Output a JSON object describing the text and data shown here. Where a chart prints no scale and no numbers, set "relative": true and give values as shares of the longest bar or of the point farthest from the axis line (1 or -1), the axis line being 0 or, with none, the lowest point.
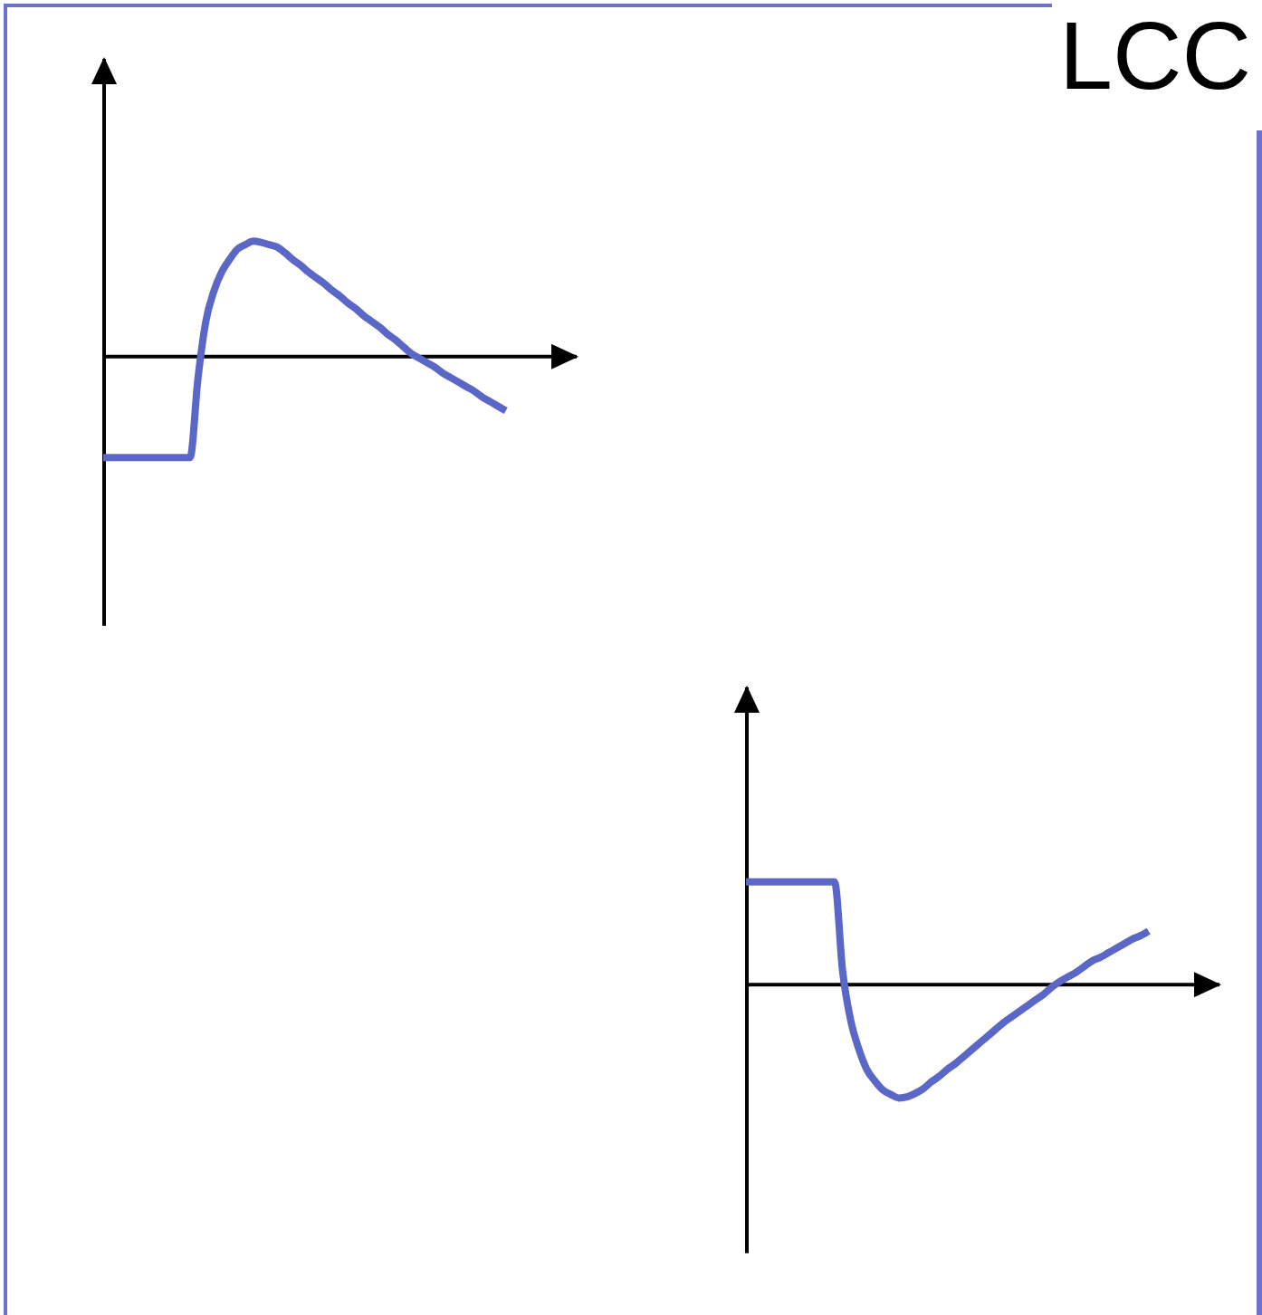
{
  "chart_data": [
    {
      "type": "line",
      "relative": true,
      "categories": [
        null,
        null,
        null,
        null,
        null,
        null,
        null,
        null,
        null,
        null,
        null,
        null,
        null,
        null,
        null,
        null,
        null,
        null,
        null,
        null,
        null,
        null,
        null,
        null,
        null,
        null,
        null,
        null,
        null,
        null,
        null,
        null,
        null,
        null,
        null,
        null,
        null,
        null,
        null,
        null,
        null,
        null,
        null,
        null,
        null,
        null,
        null,
        null,
        null,
        null,
        null,
        null
      ],
      "series": [
        {
          "color": "#5b67c6",
          "values": [
            -0.89,
            -0.89,
            -0.89,
            -0.89,
            -0.89,
            -0.89,
            -0.89,
            -0.89,
            -0.89,
            -0.89,
            -0.89,
            -0.89,
            -0.2,
            0.3,
            0.56,
            0.73,
            0.84,
            0.93,
            0.97,
            1,
            0.99,
            0.97,
            0.95,
            0.9,
            0.84,
            0.79,
            0.73,
            0.68,
            0.63,
            0.57,
            0.52,
            0.46,
            0.41,
            0.35,
            0.3,
            0.25,
            0.19,
            0.14,
            0.08,
            0.02,
            -0.02,
            -0.06,
            -0.1,
            -0.15,
            -0.19,
            -0.23,
            -0.27,
            -0.31,
            -0.36,
            -0.4,
            -0.44,
            -0.48
          ]
        }
      ]
    },
    {
      "type": "line",
      "title": "LCC",
      "relative": true,
      "categories": [
        null,
        null,
        null,
        null,
        null,
        null,
        null,
        null,
        null,
        null,
        null,
        null,
        null,
        null,
        null,
        null,
        null,
        null,
        null,
        null,
        null,
        null,
        null,
        null,
        null,
        null,
        null,
        null,
        null,
        null,
        null,
        null,
        null,
        null,
        null,
        null,
        null,
        null,
        null,
        null,
        null,
        null,
        null,
        null,
        null,
        null,
        null,
        null,
        null,
        null,
        null
      ],
      "series": [
        {
          "color": "#5b67c6",
          "values": [
            0.89,
            0.89,
            0.89,
            0.89,
            0.89,
            0.89,
            0.89,
            0.89,
            0.89,
            0.89,
            0.89,
            0.89,
            0.11,
            -0.32,
            -0.57,
            -0.75,
            -0.85,
            -0.93,
            -0.97,
            -1,
            -0.99,
            -0.96,
            -0.92,
            -0.86,
            -0.81,
            -0.75,
            -0.7,
            -0.64,
            -0.58,
            -0.52,
            -0.46,
            -0.4,
            -0.34,
            -0.29,
            -0.24,
            -0.19,
            -0.14,
            -0.09,
            -0.03,
            0.02,
            0.06,
            0.1,
            0.15,
            0.2,
            0.23,
            0.27,
            0.31,
            0.35,
            0.39,
            0.42,
            0.46
          ]
        }
      ]
    }
  ]
}
